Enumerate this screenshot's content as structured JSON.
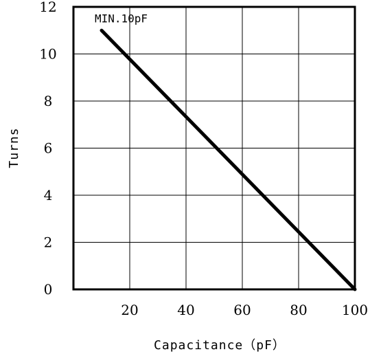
{
  "chart_data": {
    "type": "line",
    "xlabel": "Capacitance（pF）",
    "ylabel": "Turns",
    "xlim": [
      0,
      100
    ],
    "ylim": [
      0,
      12
    ],
    "x_ticks": [
      20,
      40,
      60,
      80,
      100
    ],
    "y_ticks": [
      0,
      2,
      4,
      6,
      8,
      10,
      12
    ],
    "grid": true,
    "series": [
      {
        "x": [
          10,
          100
        ],
        "y": [
          11,
          0
        ]
      }
    ],
    "annotations": [
      {
        "text": "MIN.10pF",
        "x": 10,
        "y": 11
      }
    ]
  }
}
